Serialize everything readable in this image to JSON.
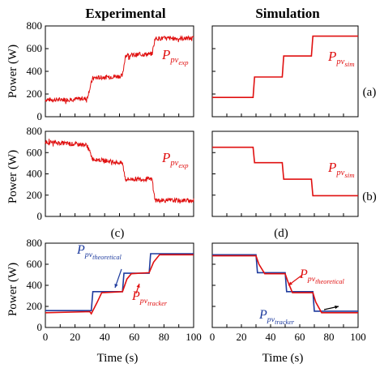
{
  "figure": {
    "columns": [
      "Experimental",
      "Simulation"
    ],
    "ylabel": "Power (W)",
    "xlabel": "Time (s)",
    "panel_tags": [
      "(a)",
      "(b)",
      "(c)",
      "(d)"
    ],
    "colors": {
      "red": "#e01010",
      "blue": "#1f3c9e"
    }
  },
  "chart_data": [
    {
      "id": "exp-a",
      "type": "line",
      "ylim": [
        0,
        800
      ],
      "yticks": [
        0,
        200,
        400,
        600,
        800
      ],
      "x": [
        0,
        10,
        20,
        28,
        32,
        42,
        52,
        54,
        62,
        72,
        74,
        82,
        100
      ],
      "series": [
        {
          "label_main": "P",
          "label_sub": "pv",
          "label_subsub": "exp",
          "values": [
            150,
            150,
            155,
            160,
            340,
            350,
            360,
            540,
            545,
            555,
            690,
            690,
            690
          ],
          "noise": 40
        }
      ]
    },
    {
      "id": "sim-a",
      "type": "line",
      "ylim": [
        0,
        800
      ],
      "yticks": [],
      "x": [
        0,
        28,
        29,
        48,
        49,
        68,
        69,
        100
      ],
      "series": [
        {
          "label_main": "P",
          "label_sub": "pv",
          "label_subsub": "sim",
          "values": [
            170,
            170,
            350,
            350,
            535,
            535,
            710,
            710
          ],
          "noise": 0
        }
      ]
    },
    {
      "id": "exp-b",
      "type": "line",
      "ylim": [
        0,
        800
      ],
      "yticks": [
        0,
        200,
        400,
        600,
        800
      ],
      "x": [
        0,
        10,
        20,
        28,
        32,
        42,
        52,
        54,
        62,
        72,
        74,
        82,
        100
      ],
      "series": [
        {
          "label_main": "P",
          "label_sub": "pv",
          "label_subsub": "exp",
          "values": [
            700,
            690,
            680,
            670,
            540,
            520,
            500,
            350,
            350,
            350,
            150,
            150,
            150
          ],
          "noise": 40
        }
      ]
    },
    {
      "id": "sim-b",
      "type": "line",
      "ylim": [
        0,
        800
      ],
      "yticks": [],
      "x": [
        0,
        28,
        29,
        48,
        49,
        68,
        69,
        100
      ],
      "series": [
        {
          "label_main": "P",
          "label_sub": "pv",
          "label_subsub": "sim",
          "values": [
            650,
            650,
            505,
            505,
            350,
            350,
            195,
            195
          ],
          "noise": 0
        }
      ]
    },
    {
      "id": "exp-c",
      "type": "line",
      "ylim": [
        0,
        800
      ],
      "yticks": [
        0,
        200,
        400,
        600,
        800
      ],
      "xlim": [
        0,
        100
      ],
      "xticks": [
        0,
        10,
        20,
        30,
        40,
        50,
        60,
        70,
        80,
        90,
        100
      ],
      "series": [
        {
          "name": "theoretical",
          "label_main": "P",
          "label_sub": "pv",
          "label_subsub": "theoretical",
          "x": [
            0,
            31,
            32,
            52,
            53,
            70,
            71,
            100
          ],
          "values": [
            160,
            160,
            340,
            340,
            515,
            515,
            700,
            700
          ]
        },
        {
          "name": "tracker",
          "label_main": "P",
          "label_sub": "pv",
          "label_subsub": "tracker",
          "x": [
            0,
            30,
            31,
            35,
            38,
            52,
            55,
            58,
            70,
            73,
            77,
            100
          ],
          "values": [
            140,
            150,
            130,
            240,
            330,
            340,
            460,
            510,
            520,
            620,
            690,
            690
          ]
        }
      ]
    },
    {
      "id": "sim-d",
      "type": "line",
      "ylim": [
        0,
        800
      ],
      "yticks": [],
      "xlim": [
        0,
        100
      ],
      "xticks": [
        0,
        10,
        20,
        30,
        40,
        50,
        60,
        70,
        80,
        90,
        100
      ],
      "series": [
        {
          "name": "theoretical",
          "label_main": "P",
          "label_sub": "pv",
          "label_subsub": "theoretical",
          "x": [
            0,
            30,
            31,
            50,
            51,
            69,
            70,
            100
          ],
          "values": [
            690,
            690,
            520,
            520,
            340,
            340,
            155,
            155
          ]
        },
        {
          "name": "tracker",
          "label_main": "P",
          "label_sub": "pv",
          "label_subsub": "tracker",
          "x": [
            0,
            30,
            32,
            36,
            50,
            52,
            55,
            69,
            71,
            75,
            100
          ],
          "values": [
            680,
            680,
            600,
            510,
            510,
            430,
            330,
            330,
            240,
            140,
            140
          ]
        }
      ]
    }
  ]
}
